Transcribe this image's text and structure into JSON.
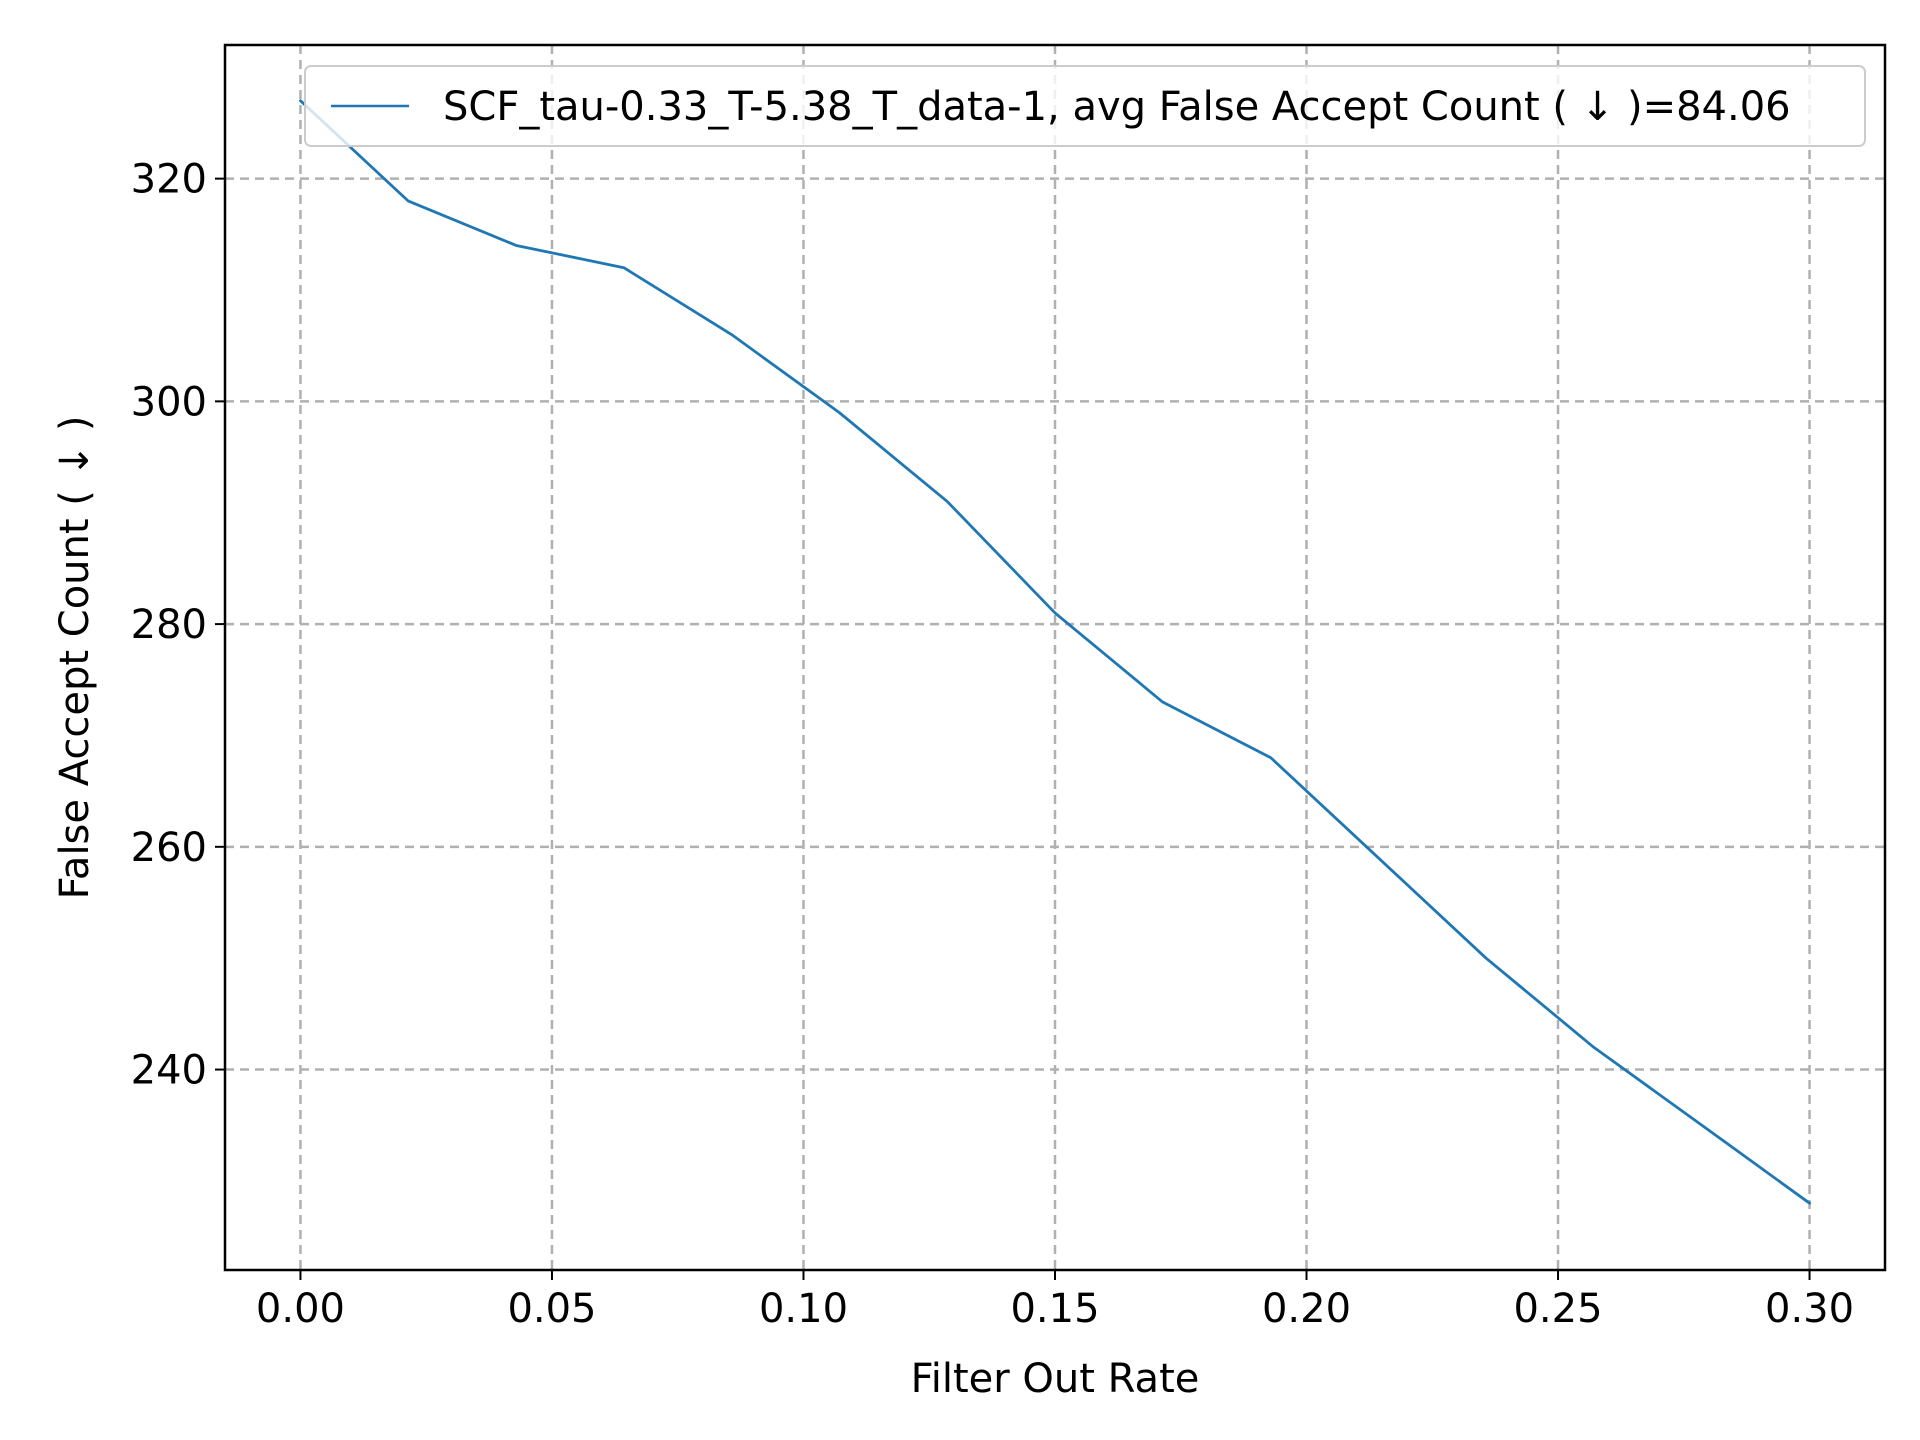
{
  "chart_data": {
    "type": "line",
    "title": "",
    "xlabel": "Filter Out Rate",
    "ylabel": "False Accept Count ( ↓ )",
    "xlim": [
      -0.015,
      0.315
    ],
    "ylim": [
      222.0,
      332.0
    ],
    "xticks": [
      0.0,
      0.05,
      0.1,
      0.15,
      0.2,
      0.25,
      0.3
    ],
    "xtick_labels": [
      "0.00",
      "0.05",
      "0.10",
      "0.15",
      "0.20",
      "0.25",
      "0.30"
    ],
    "yticks": [
      240,
      260,
      280,
      300,
      320
    ],
    "ytick_labels": [
      "240",
      "260",
      "280",
      "300",
      "320"
    ],
    "grid": true,
    "legend_position": "top-right",
    "series": [
      {
        "name": "SCF_tau-0.33_T-5.38_T_data-1, avg False Accept Count ( ↓ )=84.06",
        "color": "#1f77b4",
        "x": [
          0.0,
          0.0214,
          0.0429,
          0.0643,
          0.0857,
          0.1071,
          0.1286,
          0.15,
          0.1714,
          0.1929,
          0.2143,
          0.2357,
          0.2571,
          0.2786,
          0.3
        ],
        "y": [
          327,
          318,
          314,
          312,
          306,
          299,
          291,
          281,
          273,
          268,
          259,
          250,
          242,
          235,
          228
        ]
      }
    ]
  }
}
